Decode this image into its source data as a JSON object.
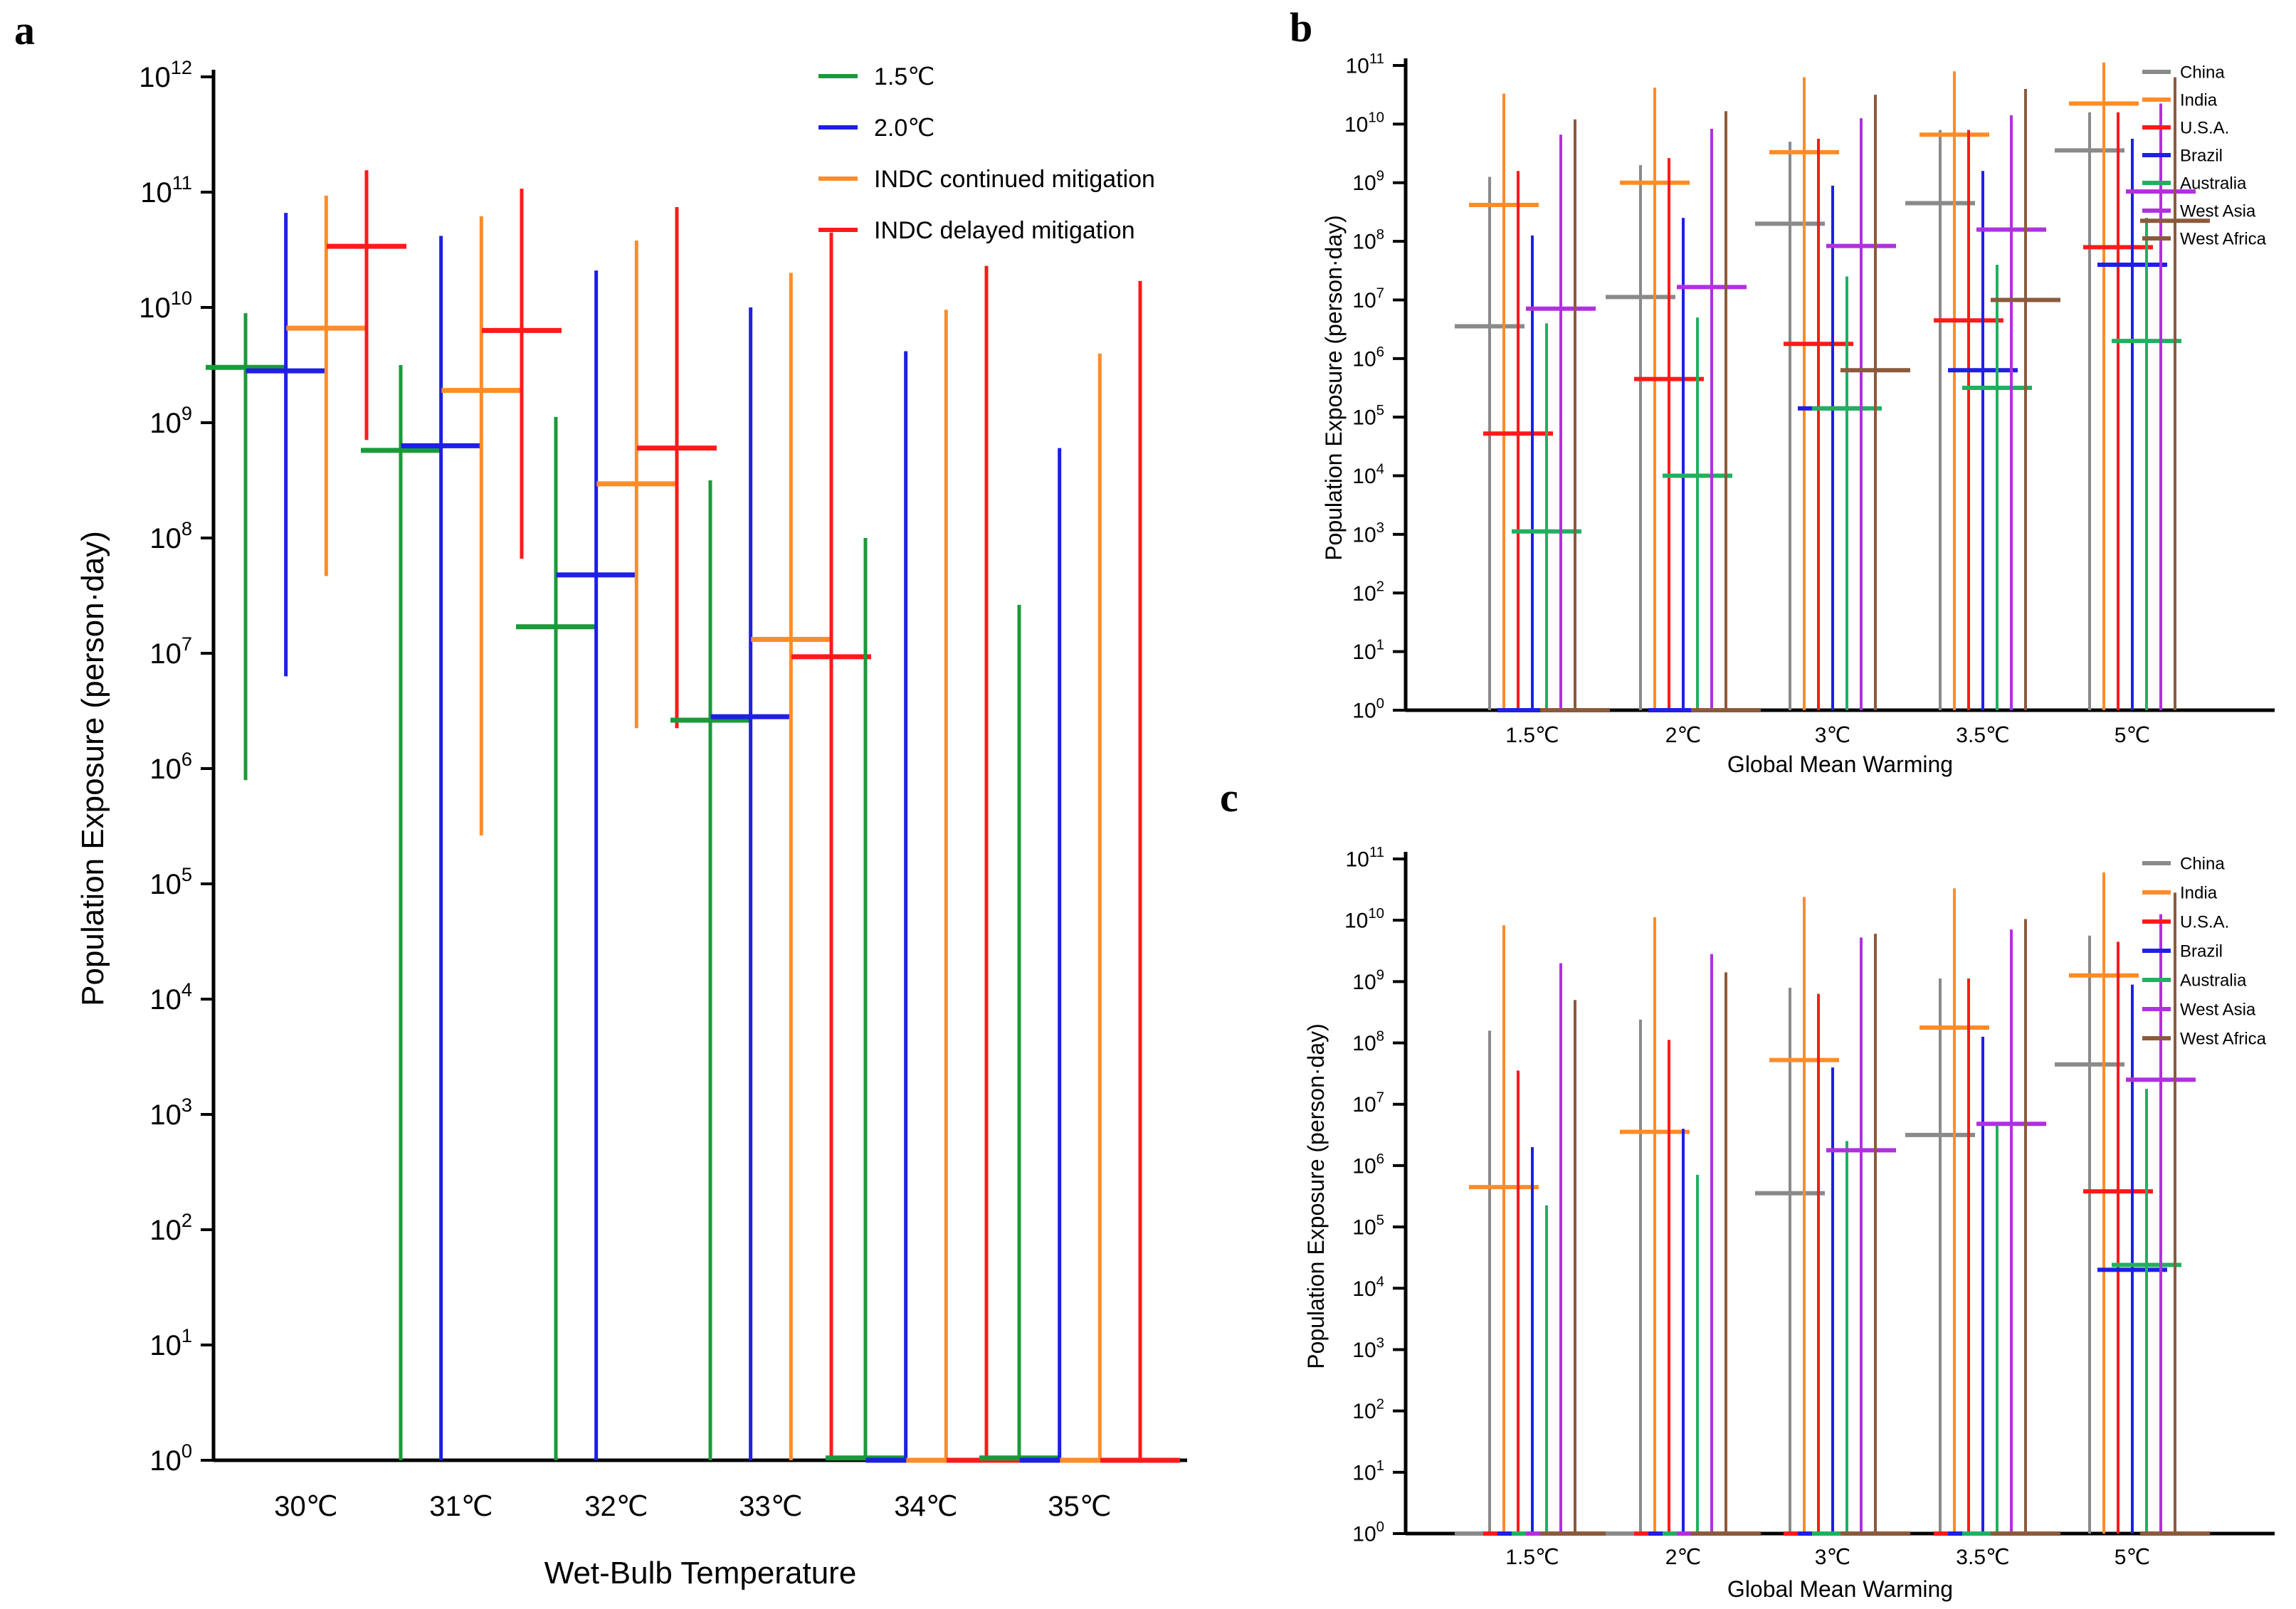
{
  "chart_data": [
    {
      "panel": "a",
      "type": "range-bar",
      "scale": "log",
      "xlabel": "Wet-Bulb Temperature",
      "ylabel": "Population Exposure (person·day)",
      "ylim_exponent": [
        0,
        12
      ],
      "categories": [
        "30℃",
        "31℃",
        "32℃",
        "33℃",
        "34℃",
        "35℃"
      ],
      "legend_position": "top-right",
      "series": [
        {
          "name": "1.5℃",
          "color": "#1a9a3a",
          "low": [
            5.9,
            0,
            0,
            0,
            0,
            0
          ],
          "high": [
            9.95,
            9.5,
            9.05,
            8.5,
            8.0,
            7.42
          ],
          "mid": [
            9.48,
            8.76,
            7.23,
            6.42,
            0.02,
            0.02
          ]
        },
        {
          "name": "2.0℃",
          "color": "#1f1fe6",
          "low": [
            6.8,
            0,
            0,
            0,
            0,
            0
          ],
          "high": [
            10.82,
            10.62,
            10.32,
            10.0,
            9.62,
            8.78
          ],
          "mid": [
            9.45,
            8.8,
            7.68,
            6.45,
            0,
            0
          ]
        },
        {
          "name": "INDC continued mitigation",
          "color": "#ff8c28",
          "low": [
            7.67,
            5.42,
            6.35,
            0,
            0,
            0
          ],
          "high": [
            10.97,
            10.79,
            10.58,
            10.3,
            9.98,
            9.6
          ],
          "mid": [
            9.82,
            9.28,
            8.47,
            7.12,
            0,
            0
          ]
        },
        {
          "name": "INDC delayed mitigation",
          "color": "#ff1a1a",
          "low": [
            8.85,
            7.82,
            6.35,
            0,
            0,
            0
          ],
          "high": [
            11.19,
            11.03,
            10.87,
            10.65,
            10.36,
            10.23
          ],
          "mid": [
            10.53,
            9.8,
            8.78,
            6.97,
            0,
            0
          ]
        }
      ]
    },
    {
      "panel": "b",
      "type": "range-bar",
      "scale": "log",
      "xlabel": "Global Mean Warming",
      "ylabel": "Population Exposure (person·day)",
      "ylim_exponent": [
        0,
        11
      ],
      "categories": [
        "1.5℃",
        "2℃",
        "3℃",
        "3.5℃",
        "5℃"
      ],
      "legend_position": "top-right",
      "series": [
        {
          "name": "China",
          "color": "#8a8a8a",
          "high": [
            9.1,
            9.3,
            9.7,
            9.9,
            10.2
          ],
          "mid": [
            6.55,
            7.05,
            8.3,
            8.65,
            9.55
          ]
        },
        {
          "name": "India",
          "color": "#ff8c28",
          "high": [
            10.52,
            10.62,
            10.8,
            10.9,
            11.05
          ],
          "mid": [
            8.62,
            9.0,
            9.52,
            9.82,
            10.35
          ]
        },
        {
          "name": "U.S.A.",
          "color": "#ff1a1a",
          "high": [
            9.2,
            9.42,
            9.75,
            9.9,
            10.2
          ],
          "mid": [
            4.72,
            5.65,
            6.25,
            6.65,
            7.9
          ]
        },
        {
          "name": "Brazil",
          "color": "#1f1fe6",
          "high": [
            8.1,
            8.4,
            8.95,
            9.2,
            9.75
          ],
          "mid": [
            0,
            0,
            5.15,
            5.8,
            7.6
          ]
        },
        {
          "name": "Australia",
          "color": "#20b060",
          "high": [
            6.6,
            6.7,
            7.4,
            7.6,
            8.4
          ],
          "mid": [
            3.05,
            4.0,
            5.15,
            5.5,
            6.3
          ]
        },
        {
          "name": "West Asia",
          "color": "#b030e0",
          "high": [
            9.82,
            9.92,
            10.1,
            10.15,
            10.35
          ],
          "mid": [
            6.85,
            7.22,
            7.92,
            8.2,
            8.85
          ]
        },
        {
          "name": "West Africa",
          "color": "#8b5a3c",
          "high": [
            10.08,
            10.22,
            10.5,
            10.6,
            10.8
          ],
          "mid": [
            0,
            0,
            5.8,
            7.0,
            8.35
          ]
        }
      ]
    },
    {
      "panel": "c",
      "type": "range-bar",
      "scale": "log",
      "xlabel": "Global Mean Warming",
      "ylabel": "Population Exposure (person·day)",
      "ylim_exponent": [
        0,
        11
      ],
      "categories": [
        "1.5℃",
        "2℃",
        "3℃",
        "3.5℃",
        "5℃"
      ],
      "legend_position": "top-right",
      "series": [
        {
          "name": "China",
          "color": "#8a8a8a",
          "high": [
            8.2,
            8.38,
            8.9,
            9.05,
            9.75
          ],
          "mid": [
            0,
            0,
            5.55,
            6.5,
            7.65
          ]
        },
        {
          "name": "India",
          "color": "#ff8c28",
          "high": [
            9.92,
            10.05,
            10.38,
            10.52,
            10.78
          ],
          "mid": [
            5.65,
            6.55,
            7.72,
            8.25,
            9.1
          ]
        },
        {
          "name": "U.S.A.",
          "color": "#ff1a1a",
          "high": [
            7.55,
            8.05,
            8.8,
            9.05,
            9.65
          ],
          "mid": [
            0,
            0,
            0,
            0,
            5.58
          ]
        },
        {
          "name": "Brazil",
          "color": "#1f1fe6",
          "high": [
            6.3,
            6.6,
            7.6,
            8.1,
            8.95
          ],
          "mid": [
            0,
            0,
            0,
            0,
            4.3
          ]
        },
        {
          "name": "Australia",
          "color": "#20b060",
          "high": [
            5.35,
            5.85,
            6.4,
            6.7,
            7.25
          ],
          "mid": [
            0,
            0,
            0,
            0,
            4.38
          ]
        },
        {
          "name": "West Asia",
          "color": "#b030e0",
          "high": [
            9.3,
            9.45,
            9.72,
            9.85,
            10.1
          ],
          "mid": [
            0,
            0,
            6.25,
            6.68,
            7.4
          ]
        },
        {
          "name": "West Africa",
          "color": "#8b5a3c",
          "high": [
            8.7,
            9.15,
            9.78,
            10.02,
            10.45
          ],
          "mid": [
            0,
            0,
            0,
            0,
            0
          ]
        }
      ]
    }
  ],
  "panel_letters": {
    "a": "a",
    "b": "b",
    "c": "c"
  }
}
